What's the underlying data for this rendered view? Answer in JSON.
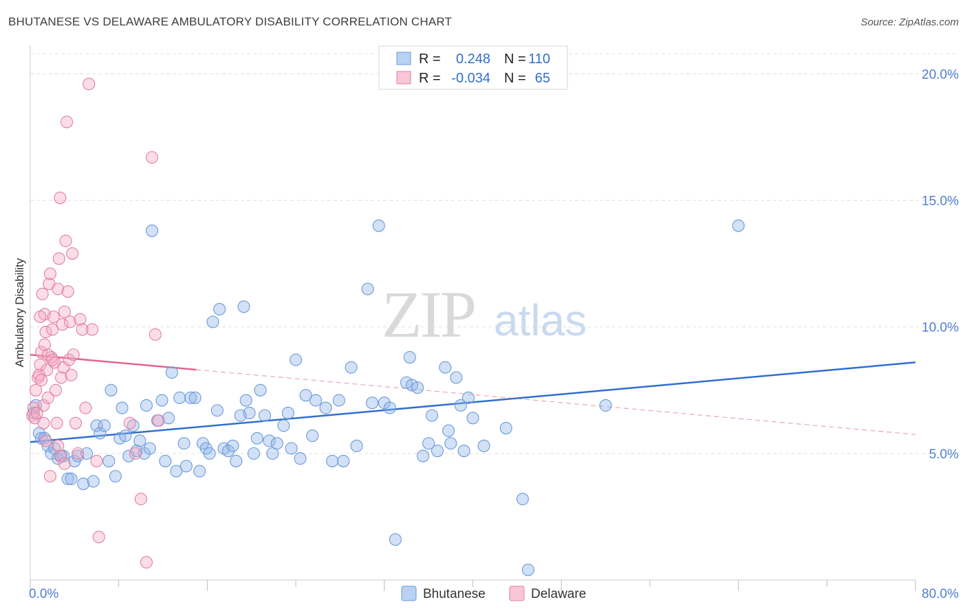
{
  "title": "BHUTANESE VS DELAWARE AMBULATORY DISABILITY CORRELATION CHART",
  "source": "Source: ZipAtlas.com",
  "watermark": {
    "zip": "ZIP",
    "atlas": "atlas"
  },
  "chart_data": {
    "type": "scatter",
    "title": "BHUTANESE VS DELAWARE AMBULATORY DISABILITY CORRELATION CHART",
    "xlabel": "",
    "ylabel": "Ambulatory Disability",
    "xlim": [
      0,
      80
    ],
    "ylim": [
      0,
      20.8
    ],
    "x_tick_labels": {
      "min": "0.0%",
      "max": "80.0%"
    },
    "y_ticks": [
      {
        "value": 5,
        "label": "5.0%"
      },
      {
        "value": 10,
        "label": "10.0%"
      },
      {
        "value": 15,
        "label": "15.0%"
      },
      {
        "value": 20,
        "label": "20.0%"
      }
    ],
    "legend": {
      "placement": "top-center",
      "entries": [
        {
          "r_label": "R =",
          "r_value": "0.248",
          "n_label": "N =",
          "n_value": "110"
        },
        {
          "r_label": "R =",
          "r_value": "-0.034",
          "n_label": "N =",
          "n_value": "65"
        }
      ]
    },
    "series": [
      {
        "name": "Bhutanese",
        "color": "#8fb4e8",
        "stroke": "#6a9ad9",
        "line_color": "#2f6fcf",
        "trend": {
          "x0": 0,
          "y0": 5.45,
          "x1": 80,
          "y1": 8.6,
          "solid_until": 80
        },
        "points": [
          [
            0.3,
            6.6
          ],
          [
            0.5,
            6.9
          ],
          [
            0.8,
            5.8
          ],
          [
            1.0,
            5.6
          ],
          [
            1.3,
            5.6
          ],
          [
            1.6,
            5.3
          ],
          [
            1.9,
            5.0
          ],
          [
            2.2,
            5.2
          ],
          [
            2.5,
            4.8
          ],
          [
            2.8,
            4.9
          ],
          [
            3.0,
            4.9
          ],
          [
            3.4,
            4.0
          ],
          [
            3.7,
            4.0
          ],
          [
            4.0,
            4.7
          ],
          [
            4.3,
            4.9
          ],
          [
            4.8,
            3.8
          ],
          [
            5.1,
            5.0
          ],
          [
            5.7,
            3.9
          ],
          [
            6.0,
            6.1
          ],
          [
            6.3,
            5.8
          ],
          [
            6.7,
            6.1
          ],
          [
            7.1,
            4.7
          ],
          [
            7.3,
            7.5
          ],
          [
            7.7,
            4.1
          ],
          [
            8.1,
            5.6
          ],
          [
            8.3,
            6.8
          ],
          [
            8.6,
            5.7
          ],
          [
            8.9,
            4.9
          ],
          [
            9.3,
            6.1
          ],
          [
            9.6,
            5.1
          ],
          [
            9.9,
            5.5
          ],
          [
            10.3,
            5.0
          ],
          [
            10.5,
            6.9
          ],
          [
            10.8,
            5.2
          ],
          [
            11.0,
            13.8
          ],
          [
            11.5,
            6.3
          ],
          [
            11.9,
            7.1
          ],
          [
            12.2,
            4.7
          ],
          [
            12.5,
            6.4
          ],
          [
            12.8,
            8.2
          ],
          [
            13.2,
            4.3
          ],
          [
            13.5,
            7.2
          ],
          [
            13.9,
            5.4
          ],
          [
            14.1,
            4.5
          ],
          [
            14.5,
            7.2
          ],
          [
            14.9,
            7.2
          ],
          [
            15.3,
            4.3
          ],
          [
            15.6,
            5.4
          ],
          [
            15.9,
            5.2
          ],
          [
            16.2,
            5.0
          ],
          [
            16.5,
            10.2
          ],
          [
            16.9,
            6.7
          ],
          [
            17.1,
            10.7
          ],
          [
            17.5,
            5.2
          ],
          [
            17.9,
            5.1
          ],
          [
            18.3,
            5.3
          ],
          [
            18.6,
            4.7
          ],
          [
            19.0,
            6.5
          ],
          [
            19.3,
            10.8
          ],
          [
            19.5,
            7.1
          ],
          [
            19.8,
            6.6
          ],
          [
            20.2,
            5.0
          ],
          [
            20.5,
            5.6
          ],
          [
            20.8,
            7.5
          ],
          [
            21.2,
            6.5
          ],
          [
            21.6,
            5.5
          ],
          [
            21.9,
            5.0
          ],
          [
            22.3,
            5.4
          ],
          [
            22.9,
            6.1
          ],
          [
            23.3,
            6.6
          ],
          [
            23.6,
            5.2
          ],
          [
            24.0,
            8.7
          ],
          [
            24.4,
            4.8
          ],
          [
            24.9,
            7.3
          ],
          [
            25.5,
            5.7
          ],
          [
            25.8,
            7.1
          ],
          [
            26.7,
            6.8
          ],
          [
            27.3,
            4.7
          ],
          [
            27.9,
            7.1
          ],
          [
            28.3,
            4.7
          ],
          [
            29.0,
            8.4
          ],
          [
            29.5,
            5.3
          ],
          [
            30.5,
            11.5
          ],
          [
            30.9,
            7.0
          ],
          [
            31.5,
            14.0
          ],
          [
            32.0,
            7.0
          ],
          [
            32.5,
            6.8
          ],
          [
            33.0,
            1.6
          ],
          [
            34.0,
            7.8
          ],
          [
            34.3,
            8.8
          ],
          [
            34.5,
            7.7
          ],
          [
            35.0,
            7.6
          ],
          [
            35.5,
            4.9
          ],
          [
            36.0,
            5.4
          ],
          [
            36.3,
            6.5
          ],
          [
            36.8,
            5.1
          ],
          [
            37.5,
            8.4
          ],
          [
            37.8,
            5.9
          ],
          [
            38.0,
            5.4
          ],
          [
            38.5,
            8.0
          ],
          [
            38.9,
            6.9
          ],
          [
            39.2,
            5.1
          ],
          [
            39.6,
            7.2
          ],
          [
            40.0,
            6.4
          ],
          [
            41.0,
            5.3
          ],
          [
            43.0,
            6.0
          ],
          [
            44.5,
            3.2
          ],
          [
            45.0,
            0.4
          ],
          [
            52.0,
            6.9
          ],
          [
            64.0,
            14.0
          ]
        ]
      },
      {
        "name": "Delaware",
        "color": "#f4a9c4",
        "stroke": "#e27fa3",
        "line_color": "#e4648f",
        "trend": {
          "x0": 0,
          "y0": 8.9,
          "x1": 80,
          "y1": 5.75,
          "solid_until": 15
        },
        "points": [
          [
            0.2,
            6.5
          ],
          [
            0.3,
            6.8
          ],
          [
            0.5,
            7.5
          ],
          [
            0.7,
            8.0
          ],
          [
            0.9,
            8.5
          ],
          [
            1.0,
            9.0
          ],
          [
            1.1,
            11.3
          ],
          [
            1.2,
            6.9
          ],
          [
            1.3,
            10.5
          ],
          [
            1.4,
            9.8
          ],
          [
            1.5,
            8.3
          ],
          [
            1.6,
            7.2
          ],
          [
            1.7,
            11.7
          ],
          [
            1.8,
            12.1
          ],
          [
            1.9,
            8.8
          ],
          [
            2.0,
            9.9
          ],
          [
            2.1,
            10.4
          ],
          [
            2.2,
            8.6
          ],
          [
            2.3,
            7.5
          ],
          [
            2.4,
            6.2
          ],
          [
            2.5,
            11.5
          ],
          [
            2.6,
            12.7
          ],
          [
            2.7,
            15.1
          ],
          [
            2.8,
            8.0
          ],
          [
            2.9,
            10.1
          ],
          [
            3.0,
            8.4
          ],
          [
            3.1,
            10.6
          ],
          [
            3.2,
            13.4
          ],
          [
            3.3,
            18.1
          ],
          [
            3.4,
            11.4
          ],
          [
            3.5,
            8.7
          ],
          [
            3.6,
            10.2
          ],
          [
            3.7,
            8.1
          ],
          [
            3.8,
            12.9
          ],
          [
            3.9,
            8.9
          ],
          [
            4.1,
            6.2
          ],
          [
            4.3,
            5.0
          ],
          [
            4.5,
            10.3
          ],
          [
            4.7,
            9.9
          ],
          [
            5.0,
            6.8
          ],
          [
            5.3,
            19.6
          ],
          [
            5.6,
            9.9
          ],
          [
            6.0,
            4.7
          ],
          [
            1.8,
            4.1
          ],
          [
            2.5,
            5.3
          ],
          [
            6.2,
            1.7
          ],
          [
            9.0,
            6.2
          ],
          [
            9.5,
            5.0
          ],
          [
            10.0,
            3.2
          ],
          [
            10.5,
            0.7
          ],
          [
            11.0,
            16.7
          ],
          [
            11.3,
            9.7
          ],
          [
            11.6,
            6.3
          ],
          [
            0.4,
            6.4
          ],
          [
            0.6,
            6.6
          ],
          [
            0.8,
            8.1
          ],
          [
            1.0,
            7.9
          ],
          [
            1.2,
            6.2
          ],
          [
            1.4,
            5.5
          ],
          [
            1.6,
            8.9
          ],
          [
            0.9,
            10.4
          ],
          [
            1.3,
            9.3
          ],
          [
            2.0,
            8.7
          ],
          [
            2.7,
            4.9
          ],
          [
            3.1,
            4.6
          ]
        ]
      }
    ]
  },
  "bottom_legend": {
    "items": [
      {
        "label": "Bhutanese"
      },
      {
        "label": "Delaware"
      }
    ]
  }
}
